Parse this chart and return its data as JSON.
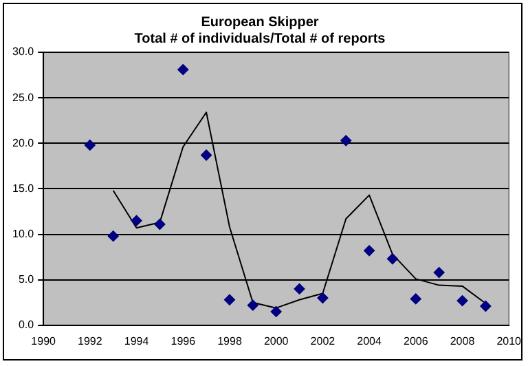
{
  "chart_data": {
    "type": "scatter",
    "title": [
      "European Skipper",
      "Total # of individuals/Total # of reports"
    ],
    "xlim": [
      1990,
      2010
    ],
    "xticks": [
      1990,
      1992,
      1994,
      1996,
      1998,
      2000,
      2002,
      2004,
      2006,
      2008,
      2010
    ],
    "ylim": [
      0,
      30
    ],
    "yticks": [
      {
        "value": 0,
        "label": "0.0"
      },
      {
        "value": 5,
        "label": "5.0"
      },
      {
        "value": 10,
        "label": "10.0"
      },
      {
        "value": 15,
        "label": "15.0"
      },
      {
        "value": 20,
        "label": "20.0"
      },
      {
        "value": 25,
        "label": "25.0"
      },
      {
        "value": 30,
        "label": "30.0"
      }
    ],
    "grid": "y",
    "legend": false,
    "marker": "diamond",
    "series": [
      {
        "color": "#000080",
        "x": [
          1992,
          1993,
          1994,
          1995,
          1996,
          1997,
          1998,
          1999,
          2000,
          2001,
          2002,
          2003,
          2004,
          2005,
          2006,
          2007,
          2008,
          2009
        ],
        "values": [
          19.8,
          9.8,
          11.5,
          11.1,
          28.1,
          18.7,
          2.8,
          2.2,
          1.5,
          4.0,
          3.0,
          20.3,
          8.2,
          7.3,
          2.9,
          5.8,
          2.7,
          2.1
        ]
      },
      {
        "type": "line",
        "color": "#000000",
        "marker": "none",
        "line_style": "solid",
        "x": [
          1993,
          1994,
          1995,
          1996,
          1997,
          1998,
          1999,
          2000,
          2001,
          2002,
          2003,
          2004,
          2005,
          2006,
          2007,
          2008,
          2009
        ],
        "values": [
          14.8,
          10.7,
          11.3,
          19.6,
          23.4,
          10.8,
          2.5,
          1.9,
          2.8,
          3.5,
          11.7,
          14.3,
          7.8,
          5.1,
          4.4,
          4.3,
          2.4
        ]
      }
    ]
  }
}
